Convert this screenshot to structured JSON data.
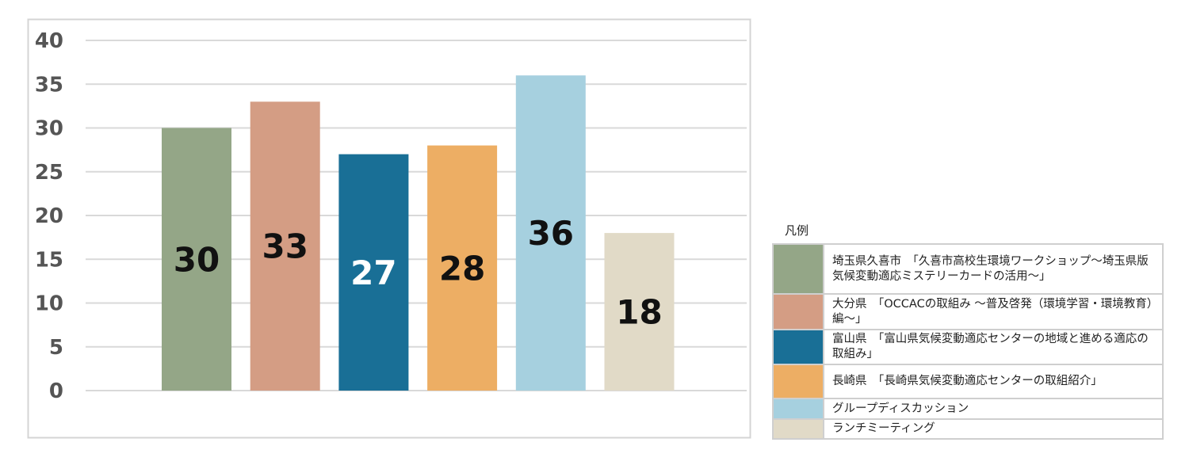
{
  "chart_data": {
    "type": "bar",
    "categories": [
      "埼玉県久喜市　「久喜市高校生環境ワークショップ～埼玉県版気候変動適応ミステリーカードの活用～」",
      "大分県　「OCCACの取組み ～普及啓発（環境学習・環境教育）編～」",
      "富山県　「富山県気候変動適応センターの地域と進める適応の取組み」",
      "長崎県　「長崎県気候変動適応センターの取組紹介」",
      "グループディスカッション",
      "ランチミーティング"
    ],
    "values": [
      30,
      33,
      27,
      28,
      36,
      18
    ],
    "colors": [
      "#94a687",
      "#d49d84",
      "#196f96",
      "#edae64",
      "#a6d0df",
      "#e1dac7"
    ],
    "label_colors": [
      "#111111",
      "#111111",
      "#ffffff",
      "#111111",
      "#111111",
      "#111111"
    ],
    "ylim": [
      0,
      40
    ],
    "yticks": [
      0,
      5,
      10,
      15,
      20,
      25,
      30,
      35,
      40
    ],
    "grid": true,
    "legend_title": "凡例",
    "legend_placement": "right"
  }
}
